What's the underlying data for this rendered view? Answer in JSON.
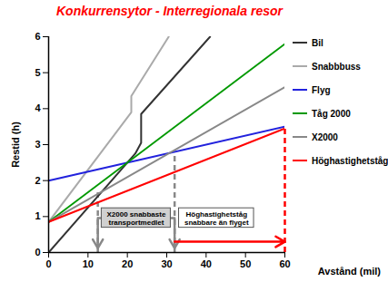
{
  "chart_data": {
    "type": "line",
    "title": "Konkurrensytor - Interregionala resor",
    "x_label": "Avstånd (mil)",
    "y_label": "Restid (h)",
    "xlim": [
      0,
      60
    ],
    "xticks": [
      0,
      10,
      20,
      30,
      40,
      50,
      60
    ],
    "ylim": [
      0,
      6
    ],
    "yticks": [
      0,
      1,
      2,
      3,
      4,
      5,
      6
    ],
    "grid": false,
    "legend": "right",
    "series": [
      {
        "name": "Bil",
        "color": "#333333",
        "x": [
          0,
          22,
          23.5,
          23.5,
          41
        ],
        "values": [
          0,
          2.75,
          3.05,
          3.85,
          6
        ]
      },
      {
        "name": "Snabbbuss",
        "color": "#aaaaaa",
        "x": [
          0,
          21,
          21,
          30.5
        ],
        "values": [
          0.85,
          3.9,
          4.35,
          6
        ]
      },
      {
        "name": "Flyg",
        "color": "#2222dd",
        "x": [
          0,
          60
        ],
        "values": [
          2,
          3.5
        ]
      },
      {
        "name": "Tåg 2000",
        "color": "#009900",
        "x": [
          0,
          60
        ],
        "values": [
          0.85,
          5.8
        ]
      },
      {
        "name": "X2000",
        "color": "#888888",
        "x": [
          0,
          60
        ],
        "values": [
          0.85,
          4.6
        ]
      },
      {
        "name": "Höghastighetståg",
        "color": "#ff0000",
        "x": [
          0,
          60
        ],
        "values": [
          0.85,
          3.45
        ]
      }
    ],
    "annotations": [
      {
        "text": "X2000 snabbaste\ntransportmedlet",
        "color": "#888888",
        "x": [
          12.5,
          32
        ],
        "y": [
          1.7,
          2.8
        ]
      },
      {
        "text": "Höghastighetståg\nsnabbare än flyget",
        "color": "#ff0000",
        "x": [
          32,
          60
        ],
        "y": [
          null,
          3.45
        ]
      }
    ]
  }
}
